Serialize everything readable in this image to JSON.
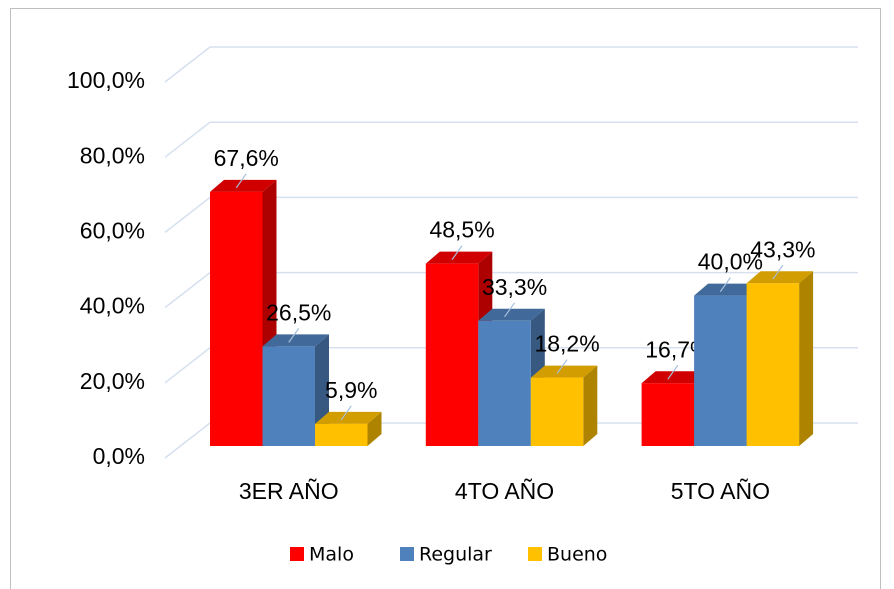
{
  "chart_data": {
    "type": "bar3d",
    "categories": [
      "3ER AÑO",
      "4TO AÑO",
      "5TO AÑO"
    ],
    "series": [
      {
        "name": "Malo",
        "color": "#ff0000",
        "values": [
          67.6,
          48.5,
          16.7
        ],
        "value_labels": [
          "67,6%",
          "48,5%",
          "16,7%"
        ]
      },
      {
        "name": "Regular",
        "color": "#4f81bd",
        "values": [
          26.5,
          33.3,
          40.0
        ],
        "value_labels": [
          "26,5%",
          "33,3%",
          "40,0%"
        ]
      },
      {
        "name": "Bueno",
        "color": "#ffc000",
        "values": [
          5.9,
          18.2,
          43.3
        ],
        "value_labels": [
          "5,9%",
          "18,2%",
          "43,3%"
        ]
      }
    ],
    "ylim": [
      0,
      100
    ],
    "yticks": [
      {
        "value": 0,
        "label": "0,0%"
      },
      {
        "value": 20,
        "label": "20,0%"
      },
      {
        "value": 40,
        "label": "40,0%"
      },
      {
        "value": 60,
        "label": "60,0%"
      },
      {
        "value": 80,
        "label": "80,0%"
      },
      {
        "value": 100,
        "label": "100,0%"
      }
    ],
    "grid": true,
    "legend": "bottom"
  }
}
